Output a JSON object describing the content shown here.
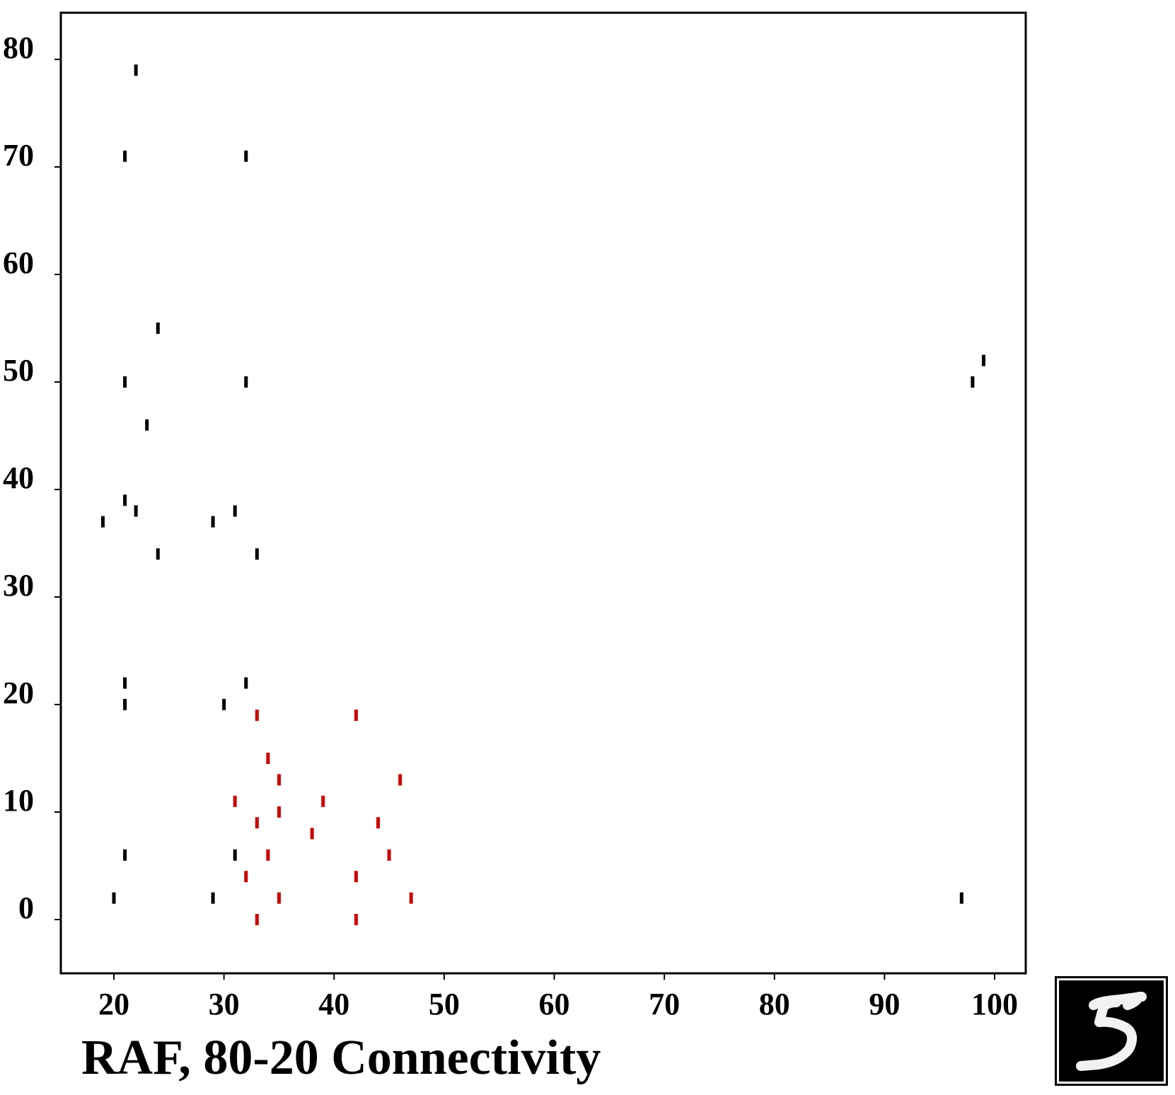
{
  "chart_data": {
    "type": "scatter",
    "title": "RAF, 80-20 Connectivity",
    "xlabel": "",
    "ylabel": "",
    "xlim": [
      15,
      103
    ],
    "ylim": [
      -5,
      84
    ],
    "xticks": [
      20,
      30,
      40,
      50,
      60,
      70,
      80,
      90,
      100
    ],
    "yticks": [
      0,
      10,
      20,
      30,
      40,
      50,
      60,
      70,
      80
    ],
    "grid": false,
    "marker": "short vertical tick",
    "series": [
      {
        "color": "#000000",
        "points": [
          [
            22,
            79
          ],
          [
            21,
            71
          ],
          [
            32,
            71
          ],
          [
            24,
            55
          ],
          [
            21,
            50
          ],
          [
            32,
            50
          ],
          [
            23,
            46
          ],
          [
            21,
            39
          ],
          [
            22,
            38
          ],
          [
            31,
            38
          ],
          [
            19,
            37
          ],
          [
            29,
            37
          ],
          [
            24,
            34
          ],
          [
            33,
            34
          ],
          [
            21,
            22
          ],
          [
            32,
            22
          ],
          [
            21,
            20
          ],
          [
            30,
            20
          ],
          [
            21,
            6
          ],
          [
            31,
            6
          ],
          [
            20,
            2
          ],
          [
            29,
            2
          ],
          [
            97,
            2
          ],
          [
            98,
            50
          ],
          [
            99,
            52
          ]
        ]
      },
      {
        "color": "#cc0000",
        "points": [
          [
            33,
            19
          ],
          [
            42,
            19
          ],
          [
            34,
            15
          ],
          [
            35,
            13
          ],
          [
            46,
            13
          ],
          [
            31,
            11
          ],
          [
            39,
            11
          ],
          [
            35,
            10
          ],
          [
            33,
            9
          ],
          [
            44,
            9
          ],
          [
            38,
            8
          ],
          [
            34,
            6
          ],
          [
            45,
            6
          ],
          [
            32,
            4
          ],
          [
            42,
            4
          ],
          [
            35,
            2
          ],
          [
            47,
            2
          ],
          [
            33,
            0
          ],
          [
            42,
            0
          ]
        ]
      }
    ]
  },
  "thumbnail": {
    "label": "5",
    "icon": "digit-five-image"
  }
}
